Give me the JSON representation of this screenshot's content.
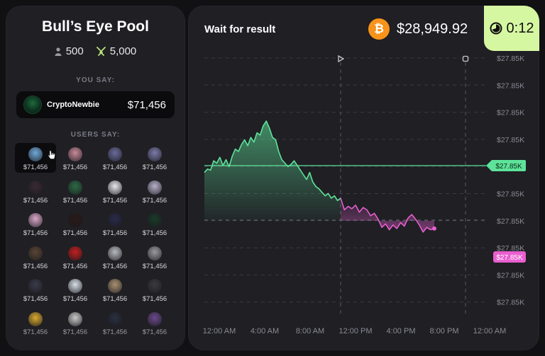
{
  "pool": {
    "title": "Bull’s Eye Pool",
    "players": "500",
    "prize": "5,000"
  },
  "you_say": {
    "label": "YOU SAY:",
    "username": "CryptoNewbie",
    "amount": "$71,456"
  },
  "users_say": {
    "label": "USERS SAY:",
    "users": [
      {
        "amount": "$71,456",
        "color": "#6fa8d8"
      },
      {
        "amount": "$71,456",
        "color": "#c98a9a"
      },
      {
        "amount": "$71,456",
        "color": "#6a6a9a"
      },
      {
        "amount": "$71,456",
        "color": "#7a7aa8"
      },
      {
        "amount": "$71,456",
        "color": "#3a2a35"
      },
      {
        "amount": "$71,456",
        "color": "#2d6a45"
      },
      {
        "amount": "$71,456",
        "color": "#e8e8ee"
      },
      {
        "amount": "$71,456",
        "color": "#b8b0c8"
      },
      {
        "amount": "$71,456",
        "color": "#d8a8c8"
      },
      {
        "amount": "$71,456",
        "color": "#2a1a1a"
      },
      {
        "amount": "$71,456",
        "color": "#2a2a4a"
      },
      {
        "amount": "$71,456",
        "color": "#1a3a2a"
      },
      {
        "amount": "$71,456",
        "color": "#5a4535"
      },
      {
        "amount": "$71,456",
        "color": "#c02020"
      },
      {
        "amount": "$71,456",
        "color": "#b8b8c0"
      },
      {
        "amount": "$71,456",
        "color": "#9a9aa0"
      },
      {
        "amount": "$71,456",
        "color": "#3a3a4a"
      },
      {
        "amount": "$71,456",
        "color": "#d8e0e8"
      },
      {
        "amount": "$71,456",
        "color": "#a89070"
      },
      {
        "amount": "$71,456",
        "color": "#3a3a40"
      },
      {
        "amount": "$71,456",
        "color": "#d8a830"
      },
      {
        "amount": "$71,456",
        "color": "#c8c8c8"
      },
      {
        "amount": "$71,456",
        "color": "#2a3040"
      },
      {
        "amount": "$71,456",
        "color": "#6a4a8a"
      }
    ]
  },
  "header": {
    "status": "Wait for result",
    "btc_symbol": "₿",
    "btc_price": "$28,949.92",
    "timer": "0:12"
  },
  "chart_data": {
    "type": "line",
    "y_ticks": [
      "$27.85K",
      "$27.85K",
      "$27.85K",
      "$27.85K",
      "$27.85K",
      "$27.85K",
      "$27.85K",
      "$27.85K",
      "$27.85K",
      "$27.85K"
    ],
    "x_ticks": [
      "12:00 AM",
      "4:00 AM",
      "8:00 AM",
      "12:00 PM",
      "4:00 PM",
      "8:00 PM",
      "12:00 AM"
    ],
    "start_label": "$27.85K",
    "current_label": "$27.85K",
    "colors": {
      "up": "#5ee39a",
      "down": "#e85fd0",
      "start_tag": "#5ee39a",
      "current_tag": "#e85fd0"
    },
    "series": [
      {
        "values": [
          0.42,
          0.45,
          0.44,
          0.52,
          0.5,
          0.55,
          0.48,
          0.53,
          0.47,
          0.56,
          0.62,
          0.6,
          0.66,
          0.7,
          0.65,
          0.72,
          0.68,
          0.76,
          0.74,
          0.82,
          0.86,
          0.8,
          0.72,
          0.7,
          0.6,
          0.53,
          0.5,
          0.47,
          0.49,
          0.52,
          0.48,
          0.44,
          0.4,
          0.36,
          0.42,
          0.34,
          0.3,
          0.28,
          0.25,
          0.22,
          0.24,
          0.2,
          0.22,
          0.18,
          0.2
        ]
      },
      {
        "values": [
          0.2,
          0.1,
          0.13,
          0.11,
          0.14,
          0.08,
          0.12,
          0.1,
          0.05,
          0.07,
          0.02,
          -0.05,
          -0.02,
          -0.07,
          -0.03,
          -0.06,
          -0.01,
          -0.04,
          0.03,
          0.06,
          0.02,
          -0.03,
          -0.09,
          -0.05,
          -0.07,
          -0.06
        ]
      }
    ]
  }
}
